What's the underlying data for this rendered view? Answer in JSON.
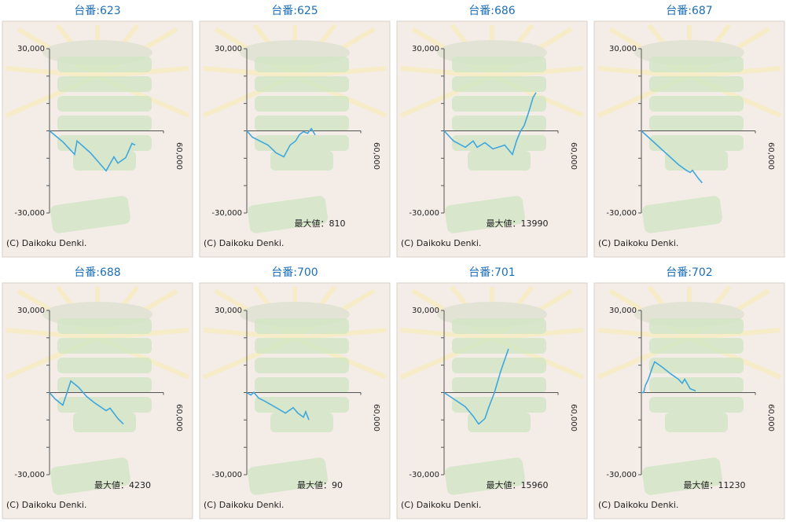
{
  "chart_data": [
    {
      "type": "line",
      "title": "台番:623",
      "color": "#3ea7dd",
      "xlim": [
        0,
        60000
      ],
      "ylim": [
        -30000,
        30000
      ],
      "xticks": [
        {
          "value": 60000,
          "label": "60,000"
        }
      ],
      "yticks": [
        {
          "value": 30000,
          "label": "30,000"
        },
        {
          "value": -30000,
          "label": "-30,000"
        }
      ],
      "minor_yticks": [
        20000,
        10000,
        0,
        -10000,
        -20000
      ],
      "x": [
        0,
        7000,
        13200,
        14500,
        21500,
        29800,
        33900,
        36000,
        40100,
        43400,
        45100
      ],
      "values": [
        0,
        -4000,
        -8600,
        -3700,
        -8000,
        -14600,
        -9500,
        -11800,
        -9800,
        -4600,
        -5200
      ],
      "copyright": "(C) Daikoku Denki."
    },
    {
      "type": "line",
      "title": "台番:625",
      "color": "#3ea7dd",
      "xlim": [
        0,
        60000
      ],
      "ylim": [
        -30000,
        30000
      ],
      "xticks": [
        {
          "value": 60000,
          "label": "60,000"
        }
      ],
      "yticks": [
        {
          "value": 30000,
          "label": "30,000"
        },
        {
          "value": -30000,
          "label": "-30,000"
        }
      ],
      "minor_yticks": [
        20000,
        10000,
        0,
        -10000,
        -20000
      ],
      "x": [
        0,
        2900,
        11200,
        15300,
        19500,
        22800,
        25700,
        27700,
        29800,
        32000,
        34000,
        36000
      ],
      "values": [
        0,
        -2300,
        -5200,
        -8000,
        -9500,
        -5200,
        -3700,
        -1400,
        -300,
        -900,
        810,
        -1500
      ],
      "annotation": "最大値：810",
      "copyright": "(C) Daikoku Denki."
    },
    {
      "type": "line",
      "title": "台番:686",
      "color": "#3ea7dd",
      "xlim": [
        0,
        60000
      ],
      "ylim": [
        -30000,
        30000
      ],
      "xticks": [
        {
          "value": 60000,
          "label": "60,000"
        }
      ],
      "yticks": [
        {
          "value": 30000,
          "label": "30,000"
        },
        {
          "value": -30000,
          "label": "-30,000"
        }
      ],
      "minor_yticks": [
        20000,
        10000,
        0,
        -10000,
        -20000
      ],
      "x": [
        0,
        5000,
        11200,
        15300,
        17400,
        21500,
        25700,
        31900,
        36000,
        38100,
        40100,
        42200,
        44300,
        46800,
        48400
      ],
      "values": [
        0,
        -3700,
        -6000,
        -3700,
        -6000,
        -4300,
        -6600,
        -5200,
        -8600,
        -3700,
        -300,
        2000,
        6300,
        12100,
        13990
      ],
      "annotation": "最大値：13990",
      "copyright": "(C) Daikoku Denki."
    },
    {
      "type": "line",
      "title": "台番:687",
      "color": "#3ea7dd",
      "xlim": [
        0,
        60000
      ],
      "ylim": [
        -30000,
        30000
      ],
      "xticks": [
        {
          "value": 60000,
          "label": "60,000"
        }
      ],
      "yticks": [
        {
          "value": 30000,
          "label": "30,000"
        },
        {
          "value": -30000,
          "label": "-30,000"
        }
      ],
      "minor_yticks": [
        20000,
        10000,
        0,
        -10000,
        -20000
      ],
      "x": [
        0,
        19500,
        23600,
        25700,
        26900,
        29800,
        32000
      ],
      "values": [
        0,
        -12300,
        -14400,
        -15200,
        -14400,
        -17200,
        -19000
      ],
      "copyright": "(C) Daikoku Denki."
    },
    {
      "type": "line",
      "title": "台番:688",
      "color": "#3ea7dd",
      "xlim": [
        0,
        60000
      ],
      "ylim": [
        -30000,
        30000
      ],
      "xticks": [
        {
          "value": 60000,
          "label": "60,000"
        }
      ],
      "yticks": [
        {
          "value": 30000,
          "label": "30,000"
        },
        {
          "value": -30000,
          "label": "-30,000"
        }
      ],
      "minor_yticks": [
        20000,
        10000,
        0,
        -10000,
        -20000
      ],
      "x": [
        0,
        2900,
        7000,
        9100,
        11200,
        15300,
        19500,
        23600,
        29800,
        31900,
        36000,
        38900
      ],
      "values": [
        0,
        -2300,
        -4600,
        -300,
        4230,
        1900,
        -1400,
        -3700,
        -6600,
        -5700,
        -9500,
        -11500
      ],
      "annotation": "最大値：4230",
      "copyright": "(C) Daikoku Denki."
    },
    {
      "type": "line",
      "title": "台番:700",
      "color": "#3ea7dd",
      "xlim": [
        0,
        60000
      ],
      "ylim": [
        -30000,
        30000
      ],
      "xticks": [
        {
          "value": 60000,
          "label": "60,000"
        }
      ],
      "yticks": [
        {
          "value": 30000,
          "label": "30,000"
        },
        {
          "value": -30000,
          "label": "-30,000"
        }
      ],
      "minor_yticks": [
        20000,
        10000,
        0,
        -10000,
        -20000
      ],
      "x": [
        0,
        2100,
        3700,
        6200,
        9100,
        13200,
        17400,
        20300,
        22800,
        24400,
        26900,
        29800,
        31000,
        32700
      ],
      "values": [
        0,
        -900,
        90,
        -2000,
        -3000,
        -4600,
        -6300,
        -7500,
        -6300,
        -5500,
        -7500,
        -9000,
        -7000,
        -10000
      ],
      "annotation": "最大値：90",
      "copyright": "(C) Daikoku Denki."
    },
    {
      "type": "line",
      "title": "台番:701",
      "color": "#3ea7dd",
      "xlim": [
        0,
        60000
      ],
      "ylim": [
        -30000,
        30000
      ],
      "xticks": [
        {
          "value": 60000,
          "label": "60,000"
        }
      ],
      "yticks": [
        {
          "value": 30000,
          "label": "30,000"
        },
        {
          "value": -30000,
          "label": "-30,000"
        }
      ],
      "minor_yticks": [
        20000,
        10000,
        0,
        -10000,
        -20000
      ],
      "x": [
        0,
        5000,
        11200,
        15300,
        18200,
        21500,
        23600,
        26500,
        29800,
        33900
      ],
      "values": [
        0,
        -2300,
        -5200,
        -8600,
        -11500,
        -9500,
        -5200,
        0,
        7800,
        15960
      ],
      "annotation": "最大値：15960",
      "copyright": "(C) Daikoku Denki."
    },
    {
      "type": "line",
      "title": "台番:702",
      "color": "#3ea7dd",
      "xlim": [
        0,
        60000
      ],
      "ylim": [
        -30000,
        30000
      ],
      "xticks": [
        {
          "value": 60000,
          "label": "60,000"
        }
      ],
      "yticks": [
        {
          "value": 30000,
          "label": "30,000"
        },
        {
          "value": -30000,
          "label": "-30,000"
        }
      ],
      "minor_yticks": [
        20000,
        10000,
        0,
        -10000,
        -20000
      ],
      "x": [
        0,
        1200,
        2100,
        3700,
        5800,
        7000,
        11200,
        15300,
        19500,
        21500,
        22800,
        25700,
        28600
      ],
      "values": [
        0,
        0,
        2600,
        4900,
        9200,
        11230,
        9200,
        6900,
        4900,
        3400,
        4900,
        1400,
        600
      ],
      "annotation": "最大値：11230",
      "copyright": "(C) Daikoku Denki."
    }
  ]
}
